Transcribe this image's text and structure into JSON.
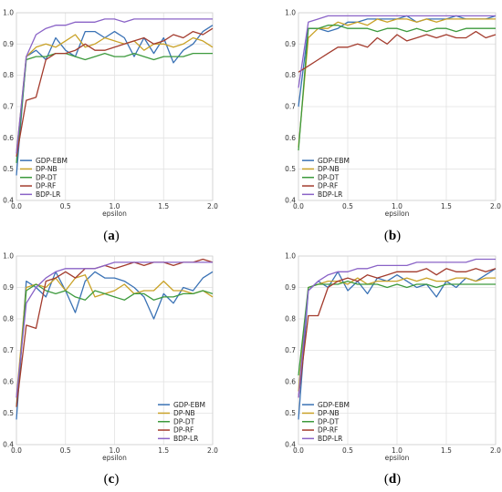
{
  "chart_data": [
    {
      "type": "line",
      "caption": "a",
      "xlabel": "epsilon",
      "xlim": [
        0,
        2.0
      ],
      "ylim": [
        0.4,
        1.0
      ],
      "x_ticks": [
        "0.0",
        "0.5",
        "1.0",
        "1.5",
        "2.0"
      ],
      "y_ticks": [
        "0.4",
        "0.5",
        "0.6",
        "0.7",
        "0.8",
        "0.9",
        "1.0"
      ],
      "grid": true,
      "legend_position": "lower-left",
      "x": [
        0.0,
        0.1,
        0.2,
        0.3,
        0.4,
        0.5,
        0.6,
        0.7,
        0.8,
        0.9,
        1.0,
        1.1,
        1.2,
        1.3,
        1.4,
        1.5,
        1.6,
        1.7,
        1.8,
        1.9,
        2.0
      ],
      "series": [
        {
          "name": "GDP-EBM",
          "color": "#3a72b5",
          "values": [
            0.48,
            0.86,
            0.88,
            0.85,
            0.92,
            0.88,
            0.86,
            0.94,
            0.94,
            0.92,
            0.94,
            0.92,
            0.86,
            0.92,
            0.87,
            0.92,
            0.84,
            0.88,
            0.9,
            0.94,
            0.96
          ]
        },
        {
          "name": "DP-NB",
          "color": "#c9a227",
          "values": [
            0.55,
            0.86,
            0.89,
            0.9,
            0.89,
            0.91,
            0.93,
            0.89,
            0.9,
            0.92,
            0.91,
            0.9,
            0.91,
            0.88,
            0.9,
            0.9,
            0.89,
            0.9,
            0.92,
            0.91,
            0.89
          ]
        },
        {
          "name": "DP-DT",
          "color": "#3d9a3d",
          "values": [
            0.52,
            0.85,
            0.86,
            0.86,
            0.87,
            0.87,
            0.86,
            0.85,
            0.86,
            0.87,
            0.86,
            0.86,
            0.87,
            0.86,
            0.85,
            0.86,
            0.86,
            0.86,
            0.87,
            0.87,
            0.87
          ]
        },
        {
          "name": "DP-RF",
          "color": "#a33b2d",
          "values": [
            0.54,
            0.72,
            0.73,
            0.85,
            0.87,
            0.87,
            0.88,
            0.9,
            0.88,
            0.88,
            0.89,
            0.9,
            0.91,
            0.92,
            0.9,
            0.91,
            0.93,
            0.92,
            0.94,
            0.93,
            0.95
          ]
        },
        {
          "name": "BDP-LR",
          "color": "#8a63c7",
          "values": [
            0.55,
            0.86,
            0.93,
            0.95,
            0.96,
            0.96,
            0.97,
            0.97,
            0.97,
            0.98,
            0.98,
            0.97,
            0.98,
            0.98,
            0.98,
            0.98,
            0.98,
            0.98,
            0.98,
            0.98,
            0.98
          ]
        }
      ]
    },
    {
      "type": "line",
      "caption": "b",
      "xlabel": "epsilon",
      "xlim": [
        0,
        2.0
      ],
      "ylim": [
        0.4,
        1.0
      ],
      "x_ticks": [
        "0.0",
        "0.5",
        "1.0",
        "1.5",
        "2.0"
      ],
      "y_ticks": [
        "0.4",
        "0.5",
        "0.6",
        "0.7",
        "0.8",
        "0.9",
        "1.0"
      ],
      "grid": true,
      "legend_position": "lower-left",
      "x": [
        0.0,
        0.1,
        0.2,
        0.3,
        0.4,
        0.5,
        0.6,
        0.7,
        0.8,
        0.9,
        1.0,
        1.1,
        1.2,
        1.3,
        1.4,
        1.5,
        1.6,
        1.7,
        1.8,
        1.9,
        2.0
      ],
      "series": [
        {
          "name": "GDP-EBM",
          "color": "#3a72b5",
          "values": [
            0.7,
            0.95,
            0.95,
            0.94,
            0.95,
            0.97,
            0.97,
            0.98,
            0.98,
            0.98,
            0.98,
            0.99,
            0.97,
            0.98,
            0.98,
            0.98,
            0.99,
            0.98,
            0.98,
            0.98,
            0.99
          ]
        },
        {
          "name": "DP-NB",
          "color": "#c9a227",
          "values": [
            0.57,
            0.92,
            0.95,
            0.95,
            0.97,
            0.96,
            0.97,
            0.96,
            0.98,
            0.97,
            0.98,
            0.98,
            0.97,
            0.98,
            0.97,
            0.98,
            0.98,
            0.98,
            0.98,
            0.98,
            0.98
          ]
        },
        {
          "name": "DP-DT",
          "color": "#3d9a3d",
          "values": [
            0.56,
            0.95,
            0.95,
            0.96,
            0.96,
            0.95,
            0.95,
            0.95,
            0.94,
            0.95,
            0.95,
            0.94,
            0.95,
            0.94,
            0.95,
            0.95,
            0.94,
            0.95,
            0.95,
            0.95,
            0.95
          ]
        },
        {
          "name": "DP-RF",
          "color": "#a33b2d",
          "values": [
            0.81,
            0.83,
            0.85,
            0.87,
            0.89,
            0.89,
            0.9,
            0.89,
            0.92,
            0.9,
            0.93,
            0.91,
            0.92,
            0.93,
            0.92,
            0.93,
            0.92,
            0.92,
            0.94,
            0.92,
            0.93
          ]
        },
        {
          "name": "BDP-LR",
          "color": "#8a63c7",
          "values": [
            0.76,
            0.97,
            0.98,
            0.99,
            0.99,
            0.99,
            0.99,
            0.99,
            0.99,
            0.99,
            0.99,
            0.99,
            0.99,
            0.99,
            0.99,
            0.99,
            0.99,
            0.99,
            0.99,
            0.99,
            0.99
          ]
        }
      ]
    },
    {
      "type": "line",
      "caption": "c",
      "xlabel": "epsilon",
      "xlim": [
        0,
        2.0
      ],
      "ylim": [
        0.4,
        1.0
      ],
      "x_ticks": [
        "0.0",
        "0.5",
        "1.0",
        "1.5",
        "2.0"
      ],
      "y_ticks": [
        "0.4",
        "0.5",
        "0.6",
        "0.7",
        "0.8",
        "0.9",
        "1.0"
      ],
      "grid": true,
      "legend_position": "lower-right",
      "x": [
        0.0,
        0.1,
        0.2,
        0.3,
        0.4,
        0.5,
        0.6,
        0.7,
        0.8,
        0.9,
        1.0,
        1.1,
        1.2,
        1.3,
        1.4,
        1.5,
        1.6,
        1.7,
        1.8,
        1.9,
        2.0
      ],
      "series": [
        {
          "name": "GDP-EBM",
          "color": "#3a72b5",
          "values": [
            0.48,
            0.92,
            0.9,
            0.87,
            0.95,
            0.89,
            0.82,
            0.92,
            0.95,
            0.93,
            0.93,
            0.92,
            0.9,
            0.87,
            0.8,
            0.88,
            0.85,
            0.9,
            0.89,
            0.93,
            0.95
          ]
        },
        {
          "name": "DP-NB",
          "color": "#c9a227",
          "values": [
            0.55,
            0.9,
            0.91,
            0.9,
            0.93,
            0.89,
            0.93,
            0.94,
            0.87,
            0.88,
            0.89,
            0.91,
            0.88,
            0.89,
            0.89,
            0.92,
            0.89,
            0.89,
            0.88,
            0.89,
            0.87
          ]
        },
        {
          "name": "DP-DT",
          "color": "#3d9a3d",
          "values": [
            0.52,
            0.89,
            0.91,
            0.89,
            0.88,
            0.89,
            0.87,
            0.86,
            0.89,
            0.88,
            0.87,
            0.86,
            0.88,
            0.88,
            0.86,
            0.87,
            0.87,
            0.88,
            0.88,
            0.89,
            0.88
          ]
        },
        {
          "name": "DP-RF",
          "color": "#a33b2d",
          "values": [
            0.52,
            0.78,
            0.77,
            0.92,
            0.93,
            0.95,
            0.93,
            0.96,
            0.96,
            0.97,
            0.96,
            0.97,
            0.98,
            0.97,
            0.98,
            0.98,
            0.97,
            0.98,
            0.98,
            0.99,
            0.98
          ]
        },
        {
          "name": "BDP-LR",
          "color": "#8a63c7",
          "values": [
            0.55,
            0.85,
            0.9,
            0.93,
            0.95,
            0.96,
            0.96,
            0.96,
            0.96,
            0.97,
            0.98,
            0.98,
            0.98,
            0.98,
            0.98,
            0.98,
            0.98,
            0.98,
            0.98,
            0.98,
            0.98
          ]
        }
      ]
    },
    {
      "type": "line",
      "caption": "d",
      "xlabel": "epsilon",
      "xlim": [
        0,
        2.0
      ],
      "ylim": [
        0.4,
        1.0
      ],
      "x_ticks": [
        "0.0",
        "0.5",
        "1.0",
        "1.5",
        "2.0"
      ],
      "y_ticks": [
        "0.4",
        "0.5",
        "0.6",
        "0.7",
        "0.8",
        "0.9",
        "1.0"
      ],
      "grid": true,
      "legend_position": "lower-left",
      "x": [
        0.0,
        0.1,
        0.2,
        0.3,
        0.4,
        0.5,
        0.6,
        0.7,
        0.8,
        0.9,
        1.0,
        1.1,
        1.2,
        1.3,
        1.4,
        1.5,
        1.6,
        1.7,
        1.8,
        1.9,
        2.0
      ],
      "series": [
        {
          "name": "GDP-EBM",
          "color": "#3a72b5",
          "values": [
            0.48,
            0.89,
            0.92,
            0.9,
            0.95,
            0.89,
            0.92,
            0.88,
            0.93,
            0.92,
            0.94,
            0.92,
            0.9,
            0.91,
            0.87,
            0.92,
            0.9,
            0.93,
            0.92,
            0.94,
            0.96
          ]
        },
        {
          "name": "DP-NB",
          "color": "#c9a227",
          "values": [
            0.57,
            0.9,
            0.91,
            0.92,
            0.92,
            0.91,
            0.93,
            0.91,
            0.92,
            0.92,
            0.92,
            0.93,
            0.92,
            0.93,
            0.92,
            0.92,
            0.93,
            0.93,
            0.92,
            0.93,
            0.93
          ]
        },
        {
          "name": "DP-DT",
          "color": "#3d9a3d",
          "values": [
            0.62,
            0.9,
            0.91,
            0.91,
            0.91,
            0.92,
            0.91,
            0.91,
            0.91,
            0.9,
            0.91,
            0.9,
            0.91,
            0.91,
            0.9,
            0.91,
            0.91,
            0.91,
            0.91,
            0.91,
            0.91
          ]
        },
        {
          "name": "DP-RF",
          "color": "#a33b2d",
          "values": [
            0.55,
            0.81,
            0.81,
            0.9,
            0.92,
            0.93,
            0.92,
            0.94,
            0.93,
            0.94,
            0.95,
            0.95,
            0.95,
            0.96,
            0.94,
            0.96,
            0.95,
            0.95,
            0.96,
            0.95,
            0.96
          ]
        },
        {
          "name": "BDP-LR",
          "color": "#8a63c7",
          "values": [
            0.55,
            0.89,
            0.92,
            0.94,
            0.95,
            0.95,
            0.96,
            0.96,
            0.97,
            0.97,
            0.97,
            0.97,
            0.98,
            0.98,
            0.98,
            0.98,
            0.98,
            0.98,
            0.99,
            0.99,
            0.99
          ]
        }
      ]
    }
  ]
}
